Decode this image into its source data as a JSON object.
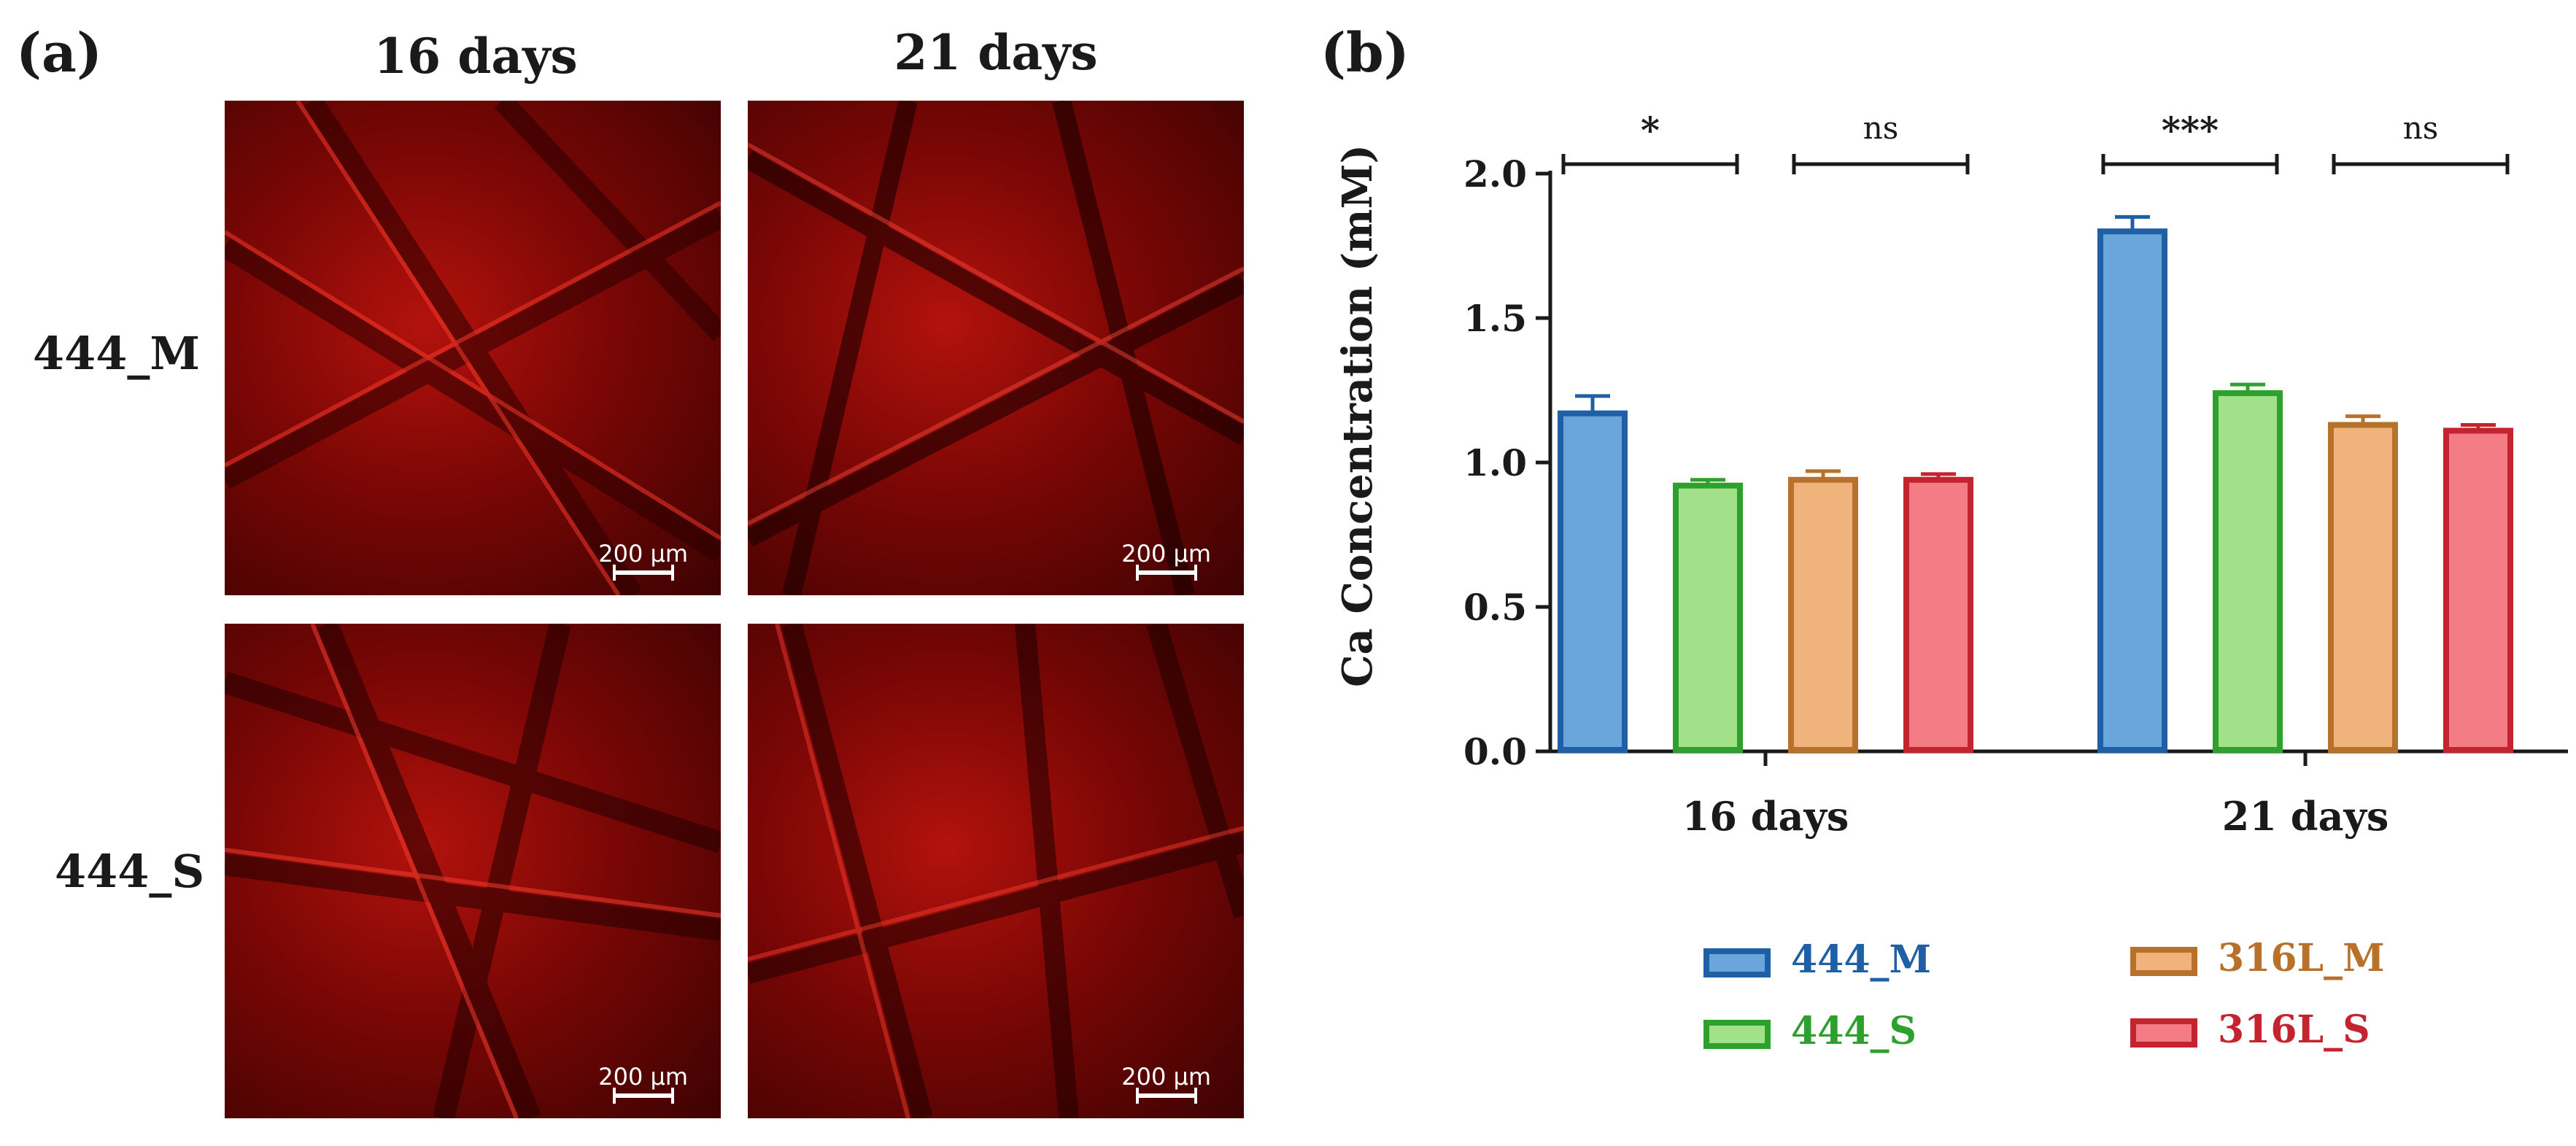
{
  "panel_a": {
    "label": "(a)",
    "columns": [
      "16  days",
      "21  days"
    ],
    "rows": [
      "444_M",
      "444_S"
    ],
    "scale_bar": "200 µm"
  },
  "chart_data": {
    "label": "(b)",
    "type": "bar",
    "categories": [
      "16 days",
      "21 days"
    ],
    "ylabel": "Ca Concentration (mM)",
    "xlabel": "",
    "ylim": [
      0,
      2.0
    ],
    "yticks": [
      "0.0",
      "0.5",
      "1.0",
      "1.5",
      "2.0"
    ],
    "series": [
      {
        "name": "444_M",
        "values": [
          1.17,
          1.8
        ],
        "errors": [
          0.06,
          0.05
        ],
        "fill": "#6aa5dc",
        "stroke": "#1f5fa6"
      },
      {
        "name": "444_S",
        "values": [
          0.92,
          1.24
        ],
        "errors": [
          0.02,
          0.03
        ],
        "fill": "#a3e08a",
        "stroke": "#2ea02e"
      },
      {
        "name": "316L_M",
        "values": [
          0.94,
          1.13
        ],
        "errors": [
          0.03,
          0.03
        ],
        "fill": "#f0b37c",
        "stroke": "#b8712a"
      },
      {
        "name": "316L_S",
        "values": [
          0.94,
          1.11
        ],
        "errors": [
          0.02,
          0.02
        ],
        "fill": "#f47c84",
        "stroke": "#c4242f"
      }
    ],
    "significance": [
      {
        "category": "16 days",
        "between": [
          "444_M",
          "444_S"
        ],
        "label": "*"
      },
      {
        "category": "16 days",
        "between": [
          "316L_M",
          "316L_S"
        ],
        "label": "ns"
      },
      {
        "category": "21 days",
        "between": [
          "444_M",
          "444_S"
        ],
        "label": "***"
      },
      {
        "category": "21 days",
        "between": [
          "316L_M",
          "316L_S"
        ],
        "label": "ns"
      }
    ],
    "legend_position": "bottom"
  }
}
